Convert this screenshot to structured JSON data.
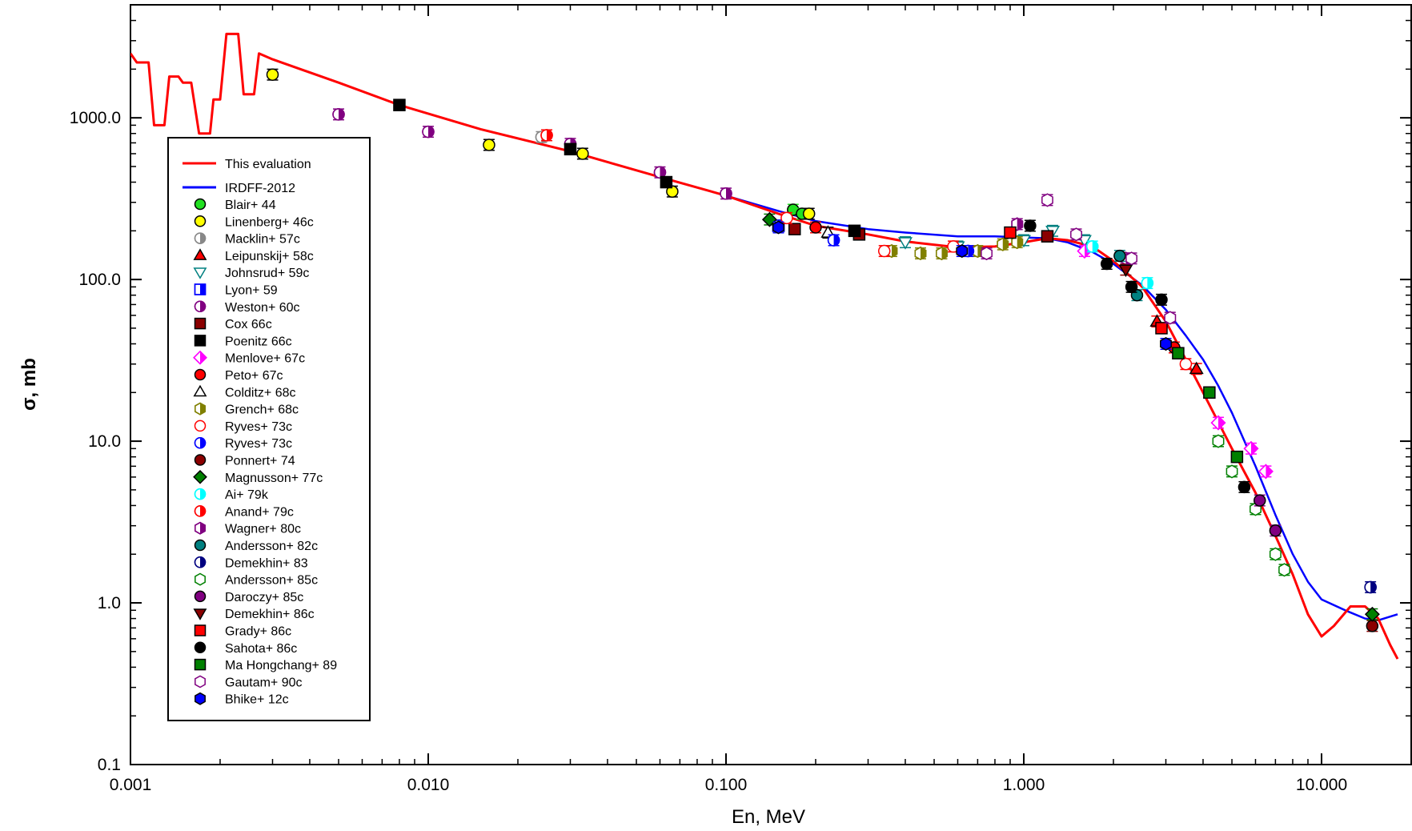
{
  "chart_data": {
    "type": "scatter",
    "xlabel": "En, MeV",
    "ylabel": "σ, mb",
    "xscale": "log",
    "yscale": "log",
    "xlim": [
      0.001,
      20
    ],
    "ylim": [
      0.1,
      5000
    ],
    "x_ticks": [
      {
        "value": 0.001,
        "label": "0.001"
      },
      {
        "value": 0.01,
        "label": "0.010"
      },
      {
        "value": 0.1,
        "label": "0.100"
      },
      {
        "value": 1,
        "label": "1.000"
      },
      {
        "value": 10,
        "label": "10.000"
      }
    ],
    "y_ticks": [
      {
        "value": 0.1,
        "label": "0.1"
      },
      {
        "value": 1,
        "label": "1.0"
      },
      {
        "value": 10,
        "label": "10.0"
      },
      {
        "value": 100,
        "label": "100.0"
      },
      {
        "value": 1000,
        "label": "1000.0"
      }
    ],
    "legend_position": "left",
    "curves": [
      {
        "name": "This evaluation",
        "color": "#ff0000",
        "points": [
          [
            0.001,
            2500
          ],
          [
            0.00105,
            2200
          ],
          [
            0.00115,
            2200
          ],
          [
            0.0012,
            900
          ],
          [
            0.0013,
            900
          ],
          [
            0.00135,
            1800
          ],
          [
            0.00145,
            1800
          ],
          [
            0.0015,
            1650
          ],
          [
            0.0016,
            1650
          ],
          [
            0.0017,
            800
          ],
          [
            0.00185,
            800
          ],
          [
            0.0019,
            1300
          ],
          [
            0.002,
            1300
          ],
          [
            0.0021,
            3300
          ],
          [
            0.0023,
            3300
          ],
          [
            0.0024,
            1400
          ],
          [
            0.0026,
            1400
          ],
          [
            0.0027,
            2500
          ],
          [
            0.003,
            2300
          ],
          [
            0.005,
            1650
          ],
          [
            0.008,
            1200
          ],
          [
            0.015,
            850
          ],
          [
            0.03,
            620
          ],
          [
            0.06,
            430
          ],
          [
            0.1,
            330
          ],
          [
            0.15,
            255
          ],
          [
            0.2,
            215
          ],
          [
            0.3,
            190
          ],
          [
            0.4,
            172
          ],
          [
            0.6,
            158
          ],
          [
            0.8,
            160
          ],
          [
            1.0,
            170
          ],
          [
            1.2,
            180
          ],
          [
            1.4,
            175
          ],
          [
            1.7,
            160
          ],
          [
            2.0,
            130
          ],
          [
            2.5,
            90
          ],
          [
            3.0,
            55
          ],
          [
            3.5,
            32
          ],
          [
            4.0,
            20
          ],
          [
            5.0,
            9
          ],
          [
            6.0,
            4.8
          ],
          [
            7.0,
            2.6
          ],
          [
            8.0,
            1.5
          ],
          [
            9.0,
            0.85
          ],
          [
            10.0,
            0.62
          ],
          [
            11.0,
            0.72
          ],
          [
            12.5,
            0.95
          ],
          [
            14.0,
            0.95
          ],
          [
            15.5,
            0.8
          ],
          [
            17.0,
            0.55
          ],
          [
            18.0,
            0.45
          ]
        ]
      },
      {
        "name": "IRDFF-2012",
        "color": "#0000ff",
        "points": [
          [
            0.1,
            330
          ],
          [
            0.15,
            265
          ],
          [
            0.2,
            230
          ],
          [
            0.3,
            205
          ],
          [
            0.4,
            195
          ],
          [
            0.6,
            185
          ],
          [
            0.8,
            185
          ],
          [
            1.0,
            182
          ],
          [
            1.2,
            180
          ],
          [
            1.4,
            170
          ],
          [
            1.7,
            148
          ],
          [
            2.0,
            125
          ],
          [
            2.5,
            92
          ],
          [
            3.0,
            65
          ],
          [
            3.5,
            45
          ],
          [
            4.0,
            32
          ],
          [
            4.5,
            22
          ],
          [
            5.0,
            15
          ],
          [
            6.0,
            7
          ],
          [
            7.0,
            3.5
          ],
          [
            8.0,
            2.0
          ],
          [
            9.0,
            1.35
          ],
          [
            10.0,
            1.05
          ],
          [
            12.0,
            0.9
          ],
          [
            14.0,
            0.8
          ],
          [
            15.5,
            0.78
          ],
          [
            18.0,
            0.85
          ]
        ]
      }
    ],
    "datasets": [
      {
        "name": "Blair+ 44",
        "marker": "circle",
        "fill": "full",
        "color": "#22e022",
        "points": [
          [
            0.168,
            270
          ],
          [
            0.18,
            255
          ]
        ]
      },
      {
        "name": "Linenberg+ 46c",
        "marker": "circle",
        "fill": "full",
        "color": "#ffff00",
        "points": [
          [
            0.003,
            1850
          ],
          [
            0.016,
            680
          ],
          [
            0.033,
            600
          ],
          [
            0.066,
            350
          ],
          [
            0.19,
            255
          ]
        ]
      },
      {
        "name": "Macklin+ 57c",
        "marker": "circle",
        "fill": "half",
        "color": "#888888",
        "points": [
          [
            0.024,
            760
          ]
        ]
      },
      {
        "name": "Leipunskij+ 58c",
        "marker": "triangle-up",
        "fill": "full",
        "color": "#ff0000",
        "points": [
          [
            2.8,
            55
          ],
          [
            3.8,
            28
          ]
        ]
      },
      {
        "name": "Johnsrud+ 59c",
        "marker": "triangle-down",
        "fill": "open",
        "color": "#008080",
        "points": [
          [
            0.4,
            170
          ],
          [
            0.6,
            160
          ],
          [
            1.0,
            175
          ],
          [
            1.25,
            200
          ],
          [
            1.6,
            175
          ]
        ]
      },
      {
        "name": "Lyon+ 59",
        "marker": "square",
        "fill": "half",
        "color": "#0000ff",
        "points": [
          [
            0.15,
            215
          ]
        ]
      },
      {
        "name": "Weston+ 60c",
        "marker": "circle",
        "fill": "half",
        "color": "#800080",
        "points": [
          [
            0.005,
            1050
          ],
          [
            0.01,
            820
          ],
          [
            0.03,
            690
          ],
          [
            0.06,
            460
          ],
          [
            0.1,
            340
          ]
        ]
      },
      {
        "name": "Cox 66c",
        "marker": "square",
        "fill": "full",
        "color": "#8b0000",
        "points": [
          [
            0.17,
            205
          ],
          [
            0.28,
            190
          ],
          [
            1.2,
            185
          ]
        ]
      },
      {
        "name": "Poenitz 66c",
        "marker": "square",
        "fill": "full",
        "color": "#000000",
        "points": [
          [
            0.008,
            1200
          ],
          [
            0.03,
            640
          ],
          [
            0.063,
            400
          ],
          [
            0.27,
            200
          ]
        ]
      },
      {
        "name": "Menlove+ 67c",
        "marker": "diamond",
        "fill": "half",
        "color": "#ff00ff",
        "points": [
          [
            1.6,
            150
          ],
          [
            4.5,
            13
          ],
          [
            5.8,
            9
          ],
          [
            6.5,
            6.5
          ]
        ]
      },
      {
        "name": "Peto+ 67c",
        "marker": "circle",
        "fill": "full",
        "color": "#ff0000",
        "points": [
          [
            0.2,
            210
          ],
          [
            3.2,
            38
          ]
        ]
      },
      {
        "name": "Colditz+ 68c",
        "marker": "triangle-up",
        "fill": "open",
        "color": "#000000",
        "points": [
          [
            0.22,
            195
          ]
        ]
      },
      {
        "name": "Grench+ 68c",
        "marker": "hexagon",
        "fill": "half",
        "color": "#808000",
        "points": [
          [
            0.36,
            150
          ],
          [
            0.45,
            145
          ],
          [
            0.53,
            145
          ],
          [
            0.7,
            150
          ],
          [
            0.85,
            165
          ],
          [
            0.95,
            170
          ]
        ]
      },
      {
        "name": "Ryves+ 73c",
        "marker": "circle",
        "fill": "open",
        "color": "#ff0000",
        "points": [
          [
            0.16,
            240
          ],
          [
            0.34,
            150
          ],
          [
            0.58,
            160
          ],
          [
            3.5,
            30
          ]
        ]
      },
      {
        "name": "Ryves+ 73c",
        "marker": "circle",
        "fill": "half",
        "color": "#0000ff",
        "points": [
          [
            0.23,
            175
          ],
          [
            0.65,
            150
          ]
        ]
      },
      {
        "name": "Ponnert+ 74",
        "marker": "circle",
        "fill": "full",
        "color": "#8b0000",
        "points": [
          [
            14.8,
            0.72
          ]
        ]
      },
      {
        "name": "Magnusson+ 77c",
        "marker": "diamond",
        "fill": "full",
        "color": "#008000",
        "points": [
          [
            0.14,
            235
          ],
          [
            14.8,
            0.85
          ]
        ]
      },
      {
        "name": "Ai+ 79k",
        "marker": "circle",
        "fill": "half",
        "color": "#00ffff",
        "points": [
          [
            1.7,
            160
          ],
          [
            2.6,
            95
          ]
        ]
      },
      {
        "name": "Anand+ 79c",
        "marker": "circle",
        "fill": "half",
        "color": "#ff0000",
        "points": [
          [
            0.025,
            780
          ]
        ]
      },
      {
        "name": "Wagner+ 80c",
        "marker": "hexagon",
        "fill": "half",
        "color": "#800080",
        "points": [
          [
            0.95,
            220
          ],
          [
            2.2,
            135
          ]
        ]
      },
      {
        "name": "Andersson+ 82c",
        "marker": "circle",
        "fill": "full",
        "color": "#008080",
        "points": [
          [
            2.1,
            140
          ],
          [
            2.4,
            80
          ]
        ]
      },
      {
        "name": "Demekhin+ 83",
        "marker": "circle",
        "fill": "half",
        "color": "#000080",
        "points": [
          [
            14.6,
            1.25
          ]
        ]
      },
      {
        "name": "Andersson+ 85c",
        "marker": "hexagon",
        "fill": "open",
        "color": "#008000",
        "points": [
          [
            4.5,
            10
          ],
          [
            5.0,
            6.5
          ],
          [
            6.0,
            3.8
          ],
          [
            7.0,
            2.0
          ],
          [
            7.5,
            1.6
          ]
        ]
      },
      {
        "name": "Daroczy+ 85c",
        "marker": "circle",
        "fill": "full",
        "color": "#800080",
        "points": [
          [
            6.2,
            4.3
          ],
          [
            7.0,
            2.8
          ]
        ]
      },
      {
        "name": "Demekhin+ 86c",
        "marker": "triangle-down",
        "fill": "full",
        "color": "#8b0000",
        "points": [
          [
            2.2,
            115
          ]
        ]
      },
      {
        "name": "Grady+ 86c",
        "marker": "square",
        "fill": "full",
        "color": "#ff0000",
        "points": [
          [
            0.9,
            195
          ],
          [
            2.9,
            50
          ]
        ]
      },
      {
        "name": "Sahota+ 86c",
        "marker": "circle",
        "fill": "full",
        "color": "#000000",
        "points": [
          [
            1.05,
            215
          ],
          [
            1.9,
            125
          ],
          [
            2.3,
            90
          ],
          [
            2.9,
            75
          ],
          [
            5.5,
            5.2
          ]
        ]
      },
      {
        "name": "Ma Hongchang+ 89",
        "marker": "square",
        "fill": "full",
        "color": "#008000",
        "points": [
          [
            3.3,
            35
          ],
          [
            4.2,
            20
          ],
          [
            5.2,
            8
          ]
        ]
      },
      {
        "name": "Gautam+ 90c",
        "marker": "hexagon",
        "fill": "open",
        "color": "#800080",
        "points": [
          [
            0.75,
            145
          ],
          [
            1.2,
            310
          ],
          [
            1.5,
            190
          ],
          [
            2.3,
            135
          ],
          [
            3.1,
            58
          ]
        ]
      },
      {
        "name": "Bhike+ 12c",
        "marker": "hexagon",
        "fill": "full",
        "color": "#0000ff",
        "points": [
          [
            0.15,
            210
          ],
          [
            0.62,
            150
          ],
          [
            3.0,
            40
          ]
        ]
      }
    ]
  }
}
